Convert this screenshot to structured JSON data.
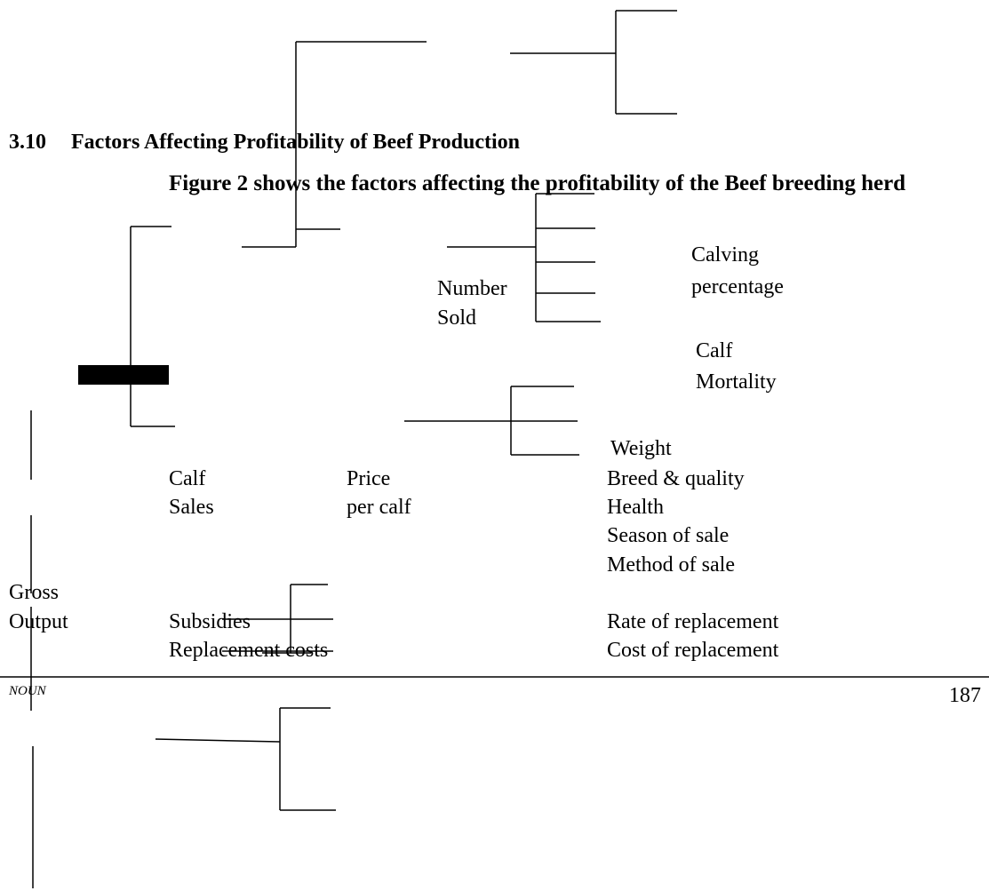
{
  "section": {
    "number": "3.10",
    "title": "Factors Affecting Profitability of Beef Production"
  },
  "intro": "Figure 2 shows the factors affecting the profitability of the Beef breeding herd",
  "labels": [
    "Number",
    "Sold",
    "Calving",
    "percentage",
    "Calf",
    "Mortality",
    "Weight",
    "Breed & quality",
    "Health",
    "Season of sale",
    "Method of sale",
    "Calf",
    "Sales",
    "Price",
    "per calf",
    "Gross",
    "Output",
    "Subsidies",
    "Replacement costs",
    "Rate of replacement",
    "Cost of replacement"
  ],
  "footer": {
    "publisher": "NOUN",
    "page": "187"
  }
}
